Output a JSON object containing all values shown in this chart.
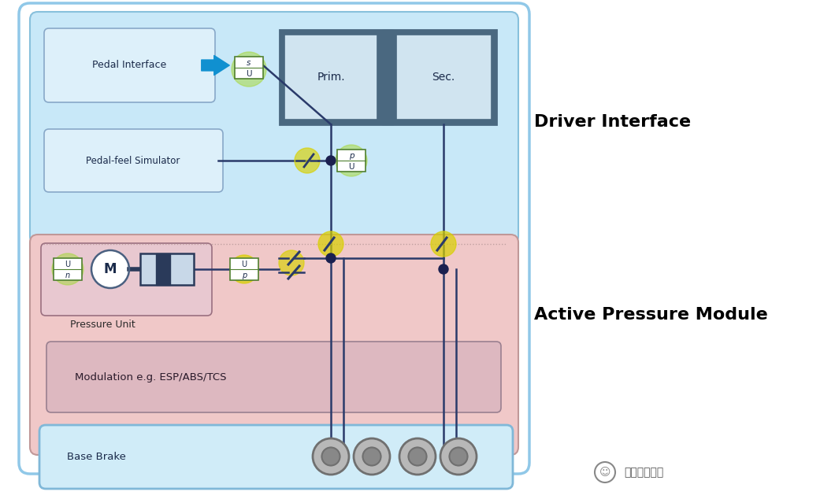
{
  "bg_color": "#ffffff",
  "driver_interface_label": "Driver Interface",
  "active_pressure_label": "Active Pressure Module",
  "pedal_interface_label": "Pedal Interface",
  "pedal_feel_label": "Pedal-feel Simulator",
  "pressure_unit_label": "Pressure Unit",
  "modulation_label": "Modulation e.g. ESP/ABS/TCS",
  "base_brake_label": "Base Brake",
  "prim_label": "Prim.",
  "sec_label": "Sec.",
  "motor_label": "M",
  "watermark": "焉知智能汽车",
  "driver_box_color": "#c8e8f8",
  "active_box_color": "#f0c8c8",
  "outer_box_color": "#90c8e8",
  "pedal_box_color": "#ddf0fa",
  "pedal_feel_box_color": "#ddf0fa",
  "pressure_unit_box_color": "#e8c8d0",
  "modulation_box_color": "#ddb8c0",
  "base_brake_box_color": "#d0ecf8",
  "master_cyl_dark": "#4a6880",
  "master_cyl_light": "#d0e4f0",
  "line_color": "#2a3a6a",
  "arrow_color": "#1090d0",
  "node_color": "#1a2050",
  "green_glow": "#a8d840",
  "yellow_glow": "#d8d000",
  "disc_outer": "#b8b8b8",
  "disc_inner": "#888888",
  "disc_border": "#707070"
}
